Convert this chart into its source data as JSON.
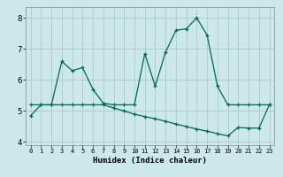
{
  "xlabel": "Humidex (Indice chaleur)",
  "background_color": "#cce8e8",
  "grid_color": "#aacccc",
  "line_color": "#006655",
  "xlim": [
    -0.5,
    23.5
  ],
  "ylim": [
    3.9,
    8.35
  ],
  "yticks": [
    4,
    5,
    6,
    7,
    8
  ],
  "xticks": [
    0,
    1,
    2,
    3,
    4,
    5,
    6,
    7,
    8,
    9,
    10,
    11,
    12,
    13,
    14,
    15,
    16,
    17,
    18,
    19,
    20,
    21,
    22,
    23
  ],
  "curve1_x": [
    0,
    1,
    2,
    3,
    4,
    5,
    6,
    7,
    8,
    9,
    10,
    11,
    12,
    13,
    14,
    15,
    16,
    17,
    18,
    19,
    20,
    21,
    22,
    23
  ],
  "curve1_y": [
    4.85,
    5.2,
    5.2,
    6.6,
    6.3,
    6.4,
    5.7,
    5.25,
    5.2,
    5.2,
    5.2,
    6.85,
    5.8,
    6.9,
    7.6,
    7.65,
    8.0,
    7.45,
    5.8,
    5.2,
    5.2,
    5.2,
    5.2,
    5.2
  ],
  "curve2_x": [
    0,
    1,
    2,
    3,
    4,
    5,
    6,
    7,
    8,
    9,
    10,
    11,
    12,
    13,
    14,
    15,
    16,
    17,
    18,
    19,
    20,
    21,
    22,
    23
  ],
  "curve2_y": [
    5.2,
    5.2,
    5.2,
    5.2,
    5.2,
    5.2,
    5.2,
    5.2,
    5.1,
    5.0,
    4.9,
    4.82,
    4.75,
    4.67,
    4.58,
    4.5,
    4.42,
    4.35,
    4.27,
    4.2,
    4.47,
    4.45,
    4.45,
    5.2
  ]
}
